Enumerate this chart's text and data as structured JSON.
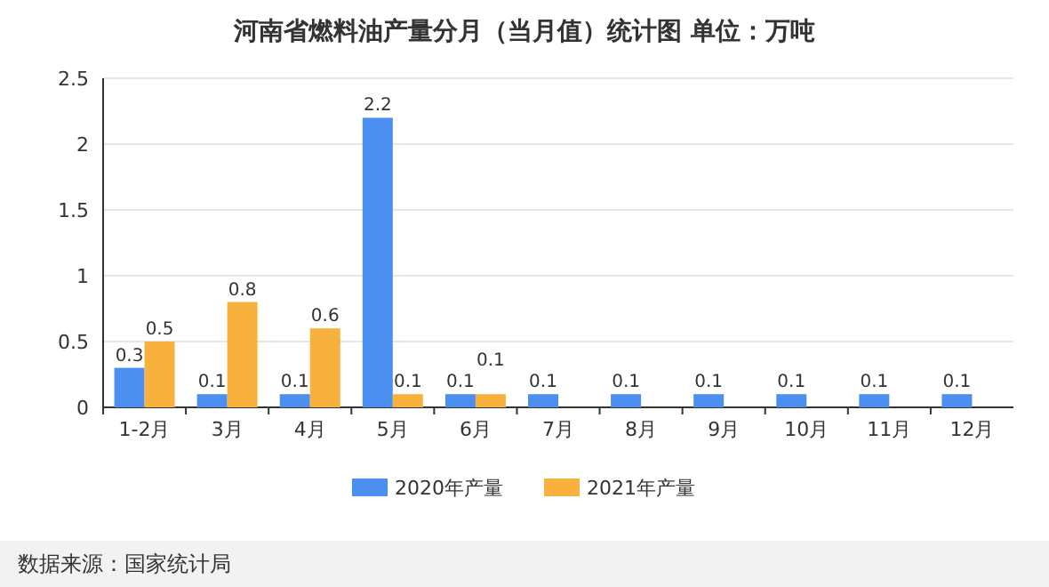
{
  "chart_data": {
    "type": "bar",
    "title": "河南省燃料油产量分月（当月值）统计图 单位：万吨",
    "categories": [
      "1-2月",
      "3月",
      "4月",
      "5月",
      "6月",
      "7月",
      "8月",
      "9月",
      "10月",
      "11月",
      "12月"
    ],
    "series": [
      {
        "name": "2020年产量",
        "color": "#4b8ff0",
        "values": [
          0.3,
          0.1,
          0.1,
          2.2,
          0.1,
          0.1,
          0.1,
          0.1,
          0.1,
          0.1,
          0.1
        ]
      },
      {
        "name": "2021年产量",
        "color": "#f8b13c",
        "values": [
          0.5,
          0.8,
          0.6,
          0.1,
          0.1,
          null,
          null,
          null,
          null,
          null,
          null
        ]
      }
    ],
    "ylim": [
      0,
      2.5
    ],
    "yticks": [
      0,
      0.5,
      1,
      1.5,
      2,
      2.5
    ],
    "grid": "y",
    "legend": "bottom",
    "data_labels": true,
    "annotations": [
      "数据来源：国家统计局"
    ]
  }
}
